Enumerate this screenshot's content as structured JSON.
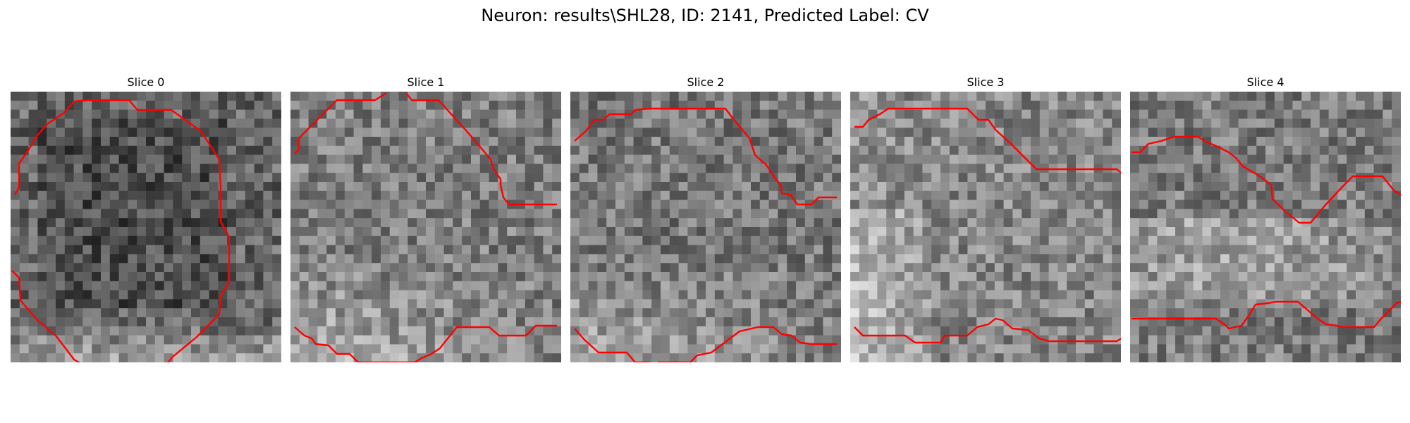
{
  "figure": {
    "title": "Neuron: results\\SHL28, ID: 2141, Predicted Label: CV"
  },
  "panels": [
    {
      "title": "Slice 0",
      "seed": 11,
      "bright": "bottom",
      "tone": -18,
      "contour_color": "#ff0000"
    },
    {
      "title": "Slice 1",
      "seed": 23,
      "bright": "bottom-left",
      "tone": 6,
      "contour_color": "#ff0000"
    },
    {
      "title": "Slice 2",
      "seed": 37,
      "bright": "bottom-left",
      "tone": 0,
      "contour_color": "#ff0000"
    },
    {
      "title": "Slice 3",
      "seed": 41,
      "bright": "left",
      "tone": 14,
      "contour_color": "#ff0000"
    },
    {
      "title": "Slice 4",
      "seed": 59,
      "bright": "middle",
      "tone": 4,
      "contour_color": "#ff0000"
    }
  ]
}
